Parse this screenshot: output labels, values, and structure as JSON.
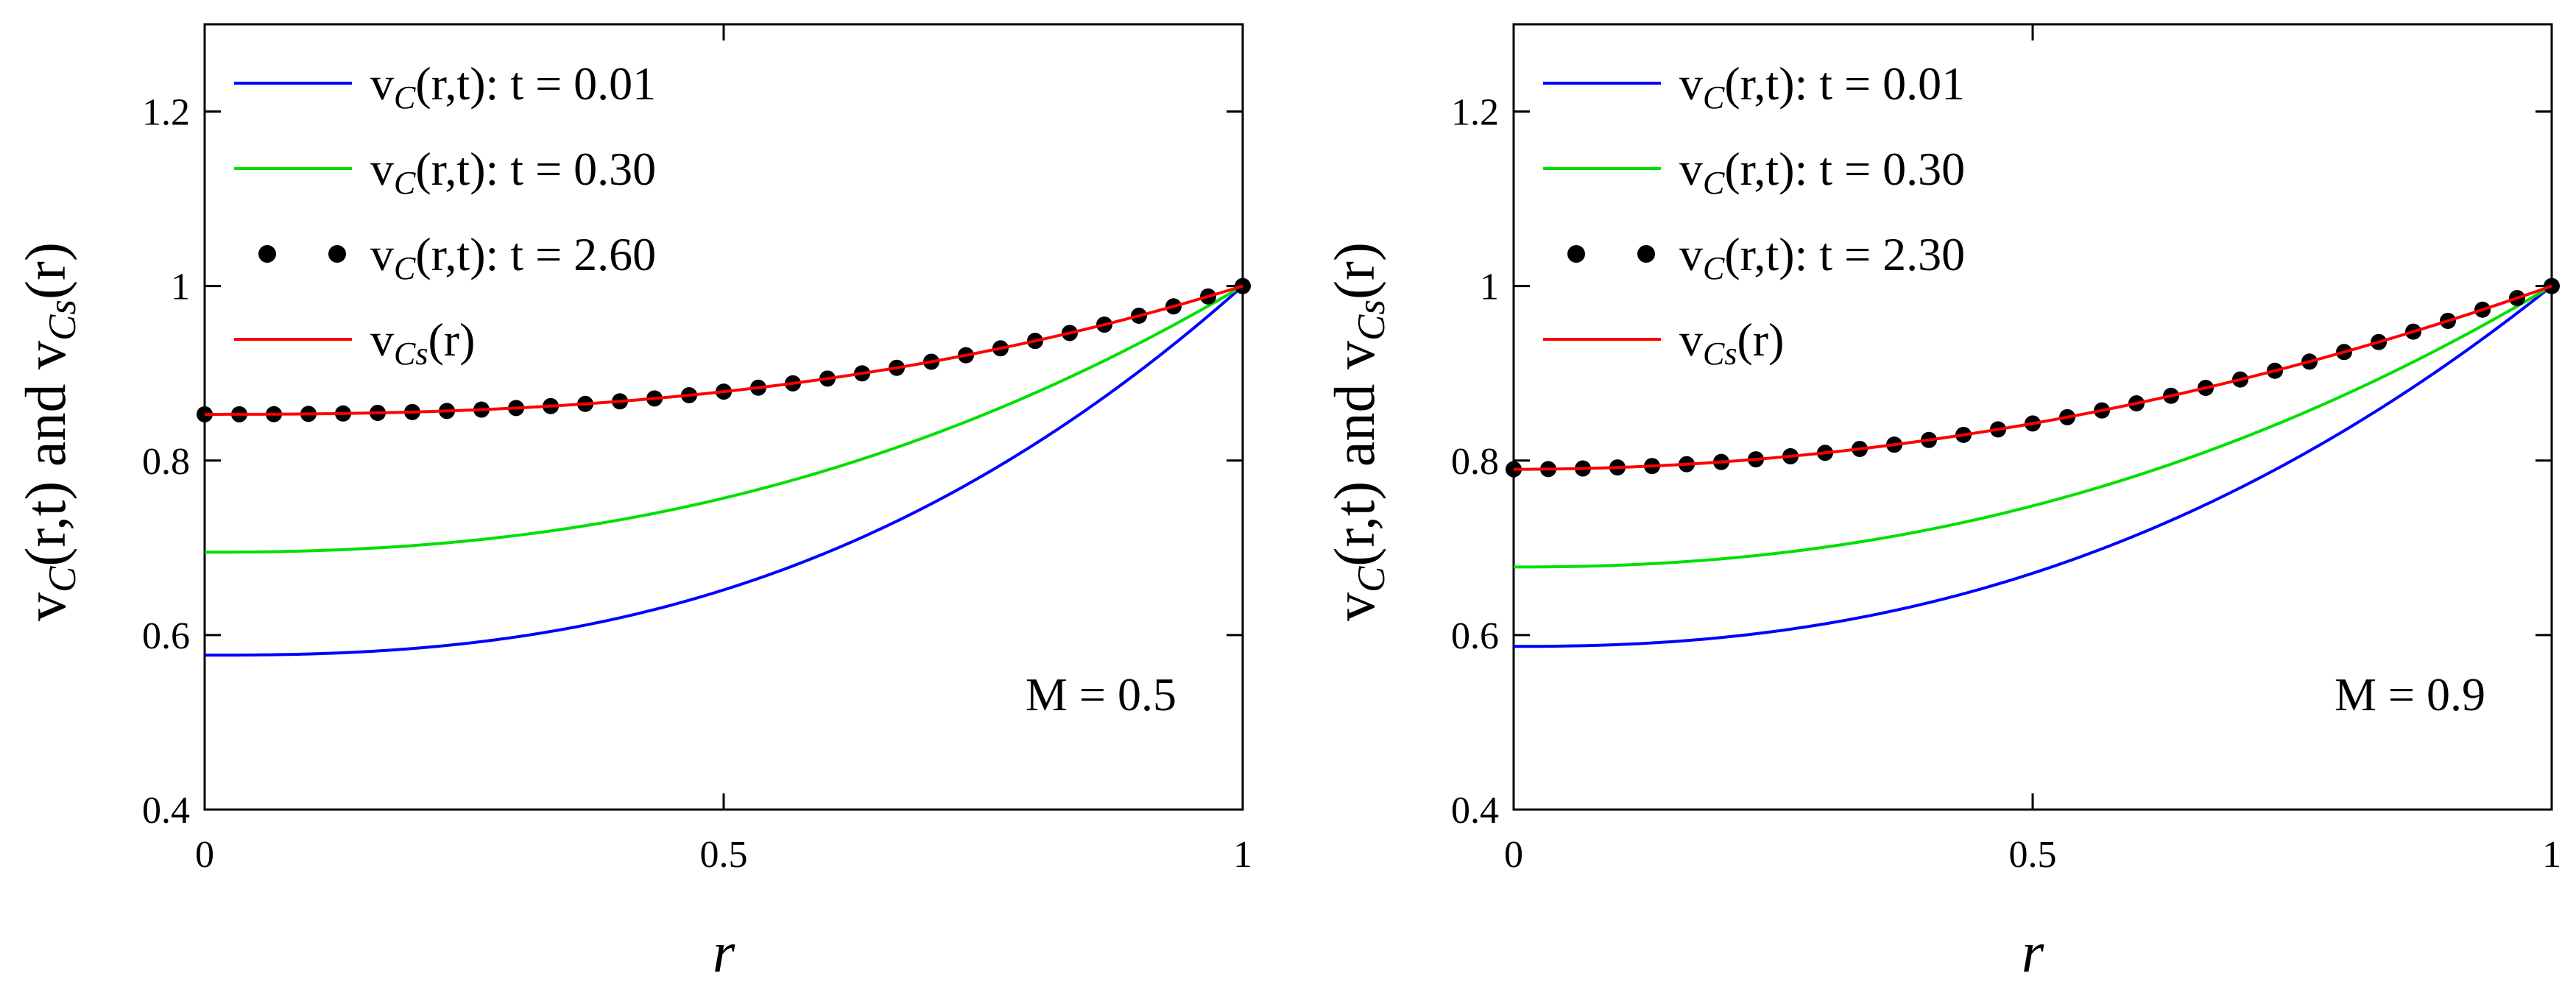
{
  "chart_data": [
    {
      "type": "line",
      "xlabel": "r",
      "ylabel": "v_C(r,t) and v_Cs(r)",
      "xlim": [
        0,
        1
      ],
      "ylim": [
        0.4,
        1.3
      ],
      "xticks": [
        "0",
        "0.5",
        "1"
      ],
      "yticks": [
        "0.4",
        "0.6",
        "0.8",
        "1",
        "1.2"
      ],
      "annotation": "M = 0.5",
      "series": [
        {
          "name": "t = 0.01",
          "legend": "vC(r,t): t = 0.01",
          "color": "#0000ff",
          "style": "line",
          "x0_value": 0.577,
          "x1_value": 1.0,
          "exponent": 2.5
        },
        {
          "name": "t = 0.30",
          "legend": "vC(r,t): t = 0.30",
          "color": "#00e000",
          "style": "line",
          "x0_value": 0.695,
          "x1_value": 1.0,
          "exponent": 2.3
        },
        {
          "name": "t = 2.60",
          "legend": "vC(r,t): t = 2.60",
          "color": "#000000",
          "style": "dots",
          "x0_value": 0.853,
          "x1_value": 1.0,
          "exponent": 2.5
        },
        {
          "name": "vCs(r)",
          "legend": "vCs(r)",
          "color": "#ff0000",
          "style": "line",
          "x0_value": 0.853,
          "x1_value": 1.0,
          "exponent": 2.5
        }
      ]
    },
    {
      "type": "line",
      "xlabel": "r",
      "ylabel": "v_C(r,t) and v_Cs(r)",
      "xlim": [
        0,
        1
      ],
      "ylim": [
        0.4,
        1.3
      ],
      "xticks": [
        "0",
        "0.5",
        "1"
      ],
      "yticks": [
        "0.4",
        "0.6",
        "0.8",
        "1",
        "1.2"
      ],
      "annotation": "M = 0.9",
      "series": [
        {
          "name": "t = 0.01",
          "legend": "vC(r,t): t = 0.01",
          "color": "#0000ff",
          "style": "line",
          "x0_value": 0.587,
          "x1_value": 1.0,
          "exponent": 2.3
        },
        {
          "name": "t = 0.30",
          "legend": "vC(r,t): t = 0.30",
          "color": "#00e000",
          "style": "line",
          "x0_value": 0.678,
          "x1_value": 1.0,
          "exponent": 2.2
        },
        {
          "name": "t = 2.30",
          "legend": "vC(r,t): t = 2.30",
          "color": "#000000",
          "style": "dots",
          "x0_value": 0.79,
          "x1_value": 1.0,
          "exponent": 2.0
        },
        {
          "name": "vCs(r)",
          "legend": "vCs(r)",
          "color": "#ff0000",
          "style": "line",
          "x0_value": 0.79,
          "x1_value": 1.0,
          "exponent": 2.0
        }
      ]
    }
  ]
}
